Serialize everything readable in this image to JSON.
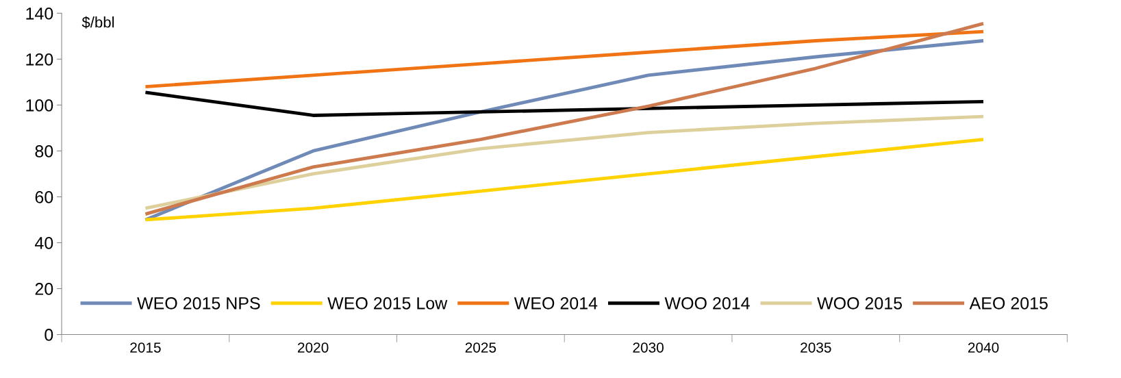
{
  "chart_data": {
    "type": "line",
    "ylabel": "$/bbl",
    "categories": [
      "2015",
      "2020",
      "2025",
      "2030",
      "2035",
      "2040"
    ],
    "series": [
      {
        "name": "WEO 2015 NPS",
        "color": "#6f8ab7",
        "values": [
          50,
          80,
          97,
          113,
          121,
          128
        ]
      },
      {
        "name": "WEO 2015 Low",
        "color": "#ffd200",
        "values": [
          50,
          55,
          62.5,
          70,
          77.5,
          85
        ]
      },
      {
        "name": "WEO 2014",
        "color": "#f07314",
        "values": [
          108,
          113,
          118,
          123,
          128,
          132
        ]
      },
      {
        "name": "WOO 2014",
        "color": "#000000",
        "values": [
          105.5,
          95.5,
          97,
          98.5,
          100,
          101.5
        ]
      },
      {
        "name": "WOO 2015",
        "color": "#ddd09c",
        "values": [
          55,
          70,
          81,
          88,
          92,
          95
        ]
      },
      {
        "name": "AEO 2015",
        "color": "#cc7a4e",
        "values": [
          52.5,
          73,
          85,
          99.5,
          116,
          135.5
        ]
      }
    ],
    "ylim": [
      0,
      140
    ],
    "yticks": [
      0,
      20,
      40,
      60,
      80,
      100,
      120,
      140
    ],
    "grid": false,
    "legend": "bottom",
    "marker": "none",
    "line_style": "solid"
  }
}
